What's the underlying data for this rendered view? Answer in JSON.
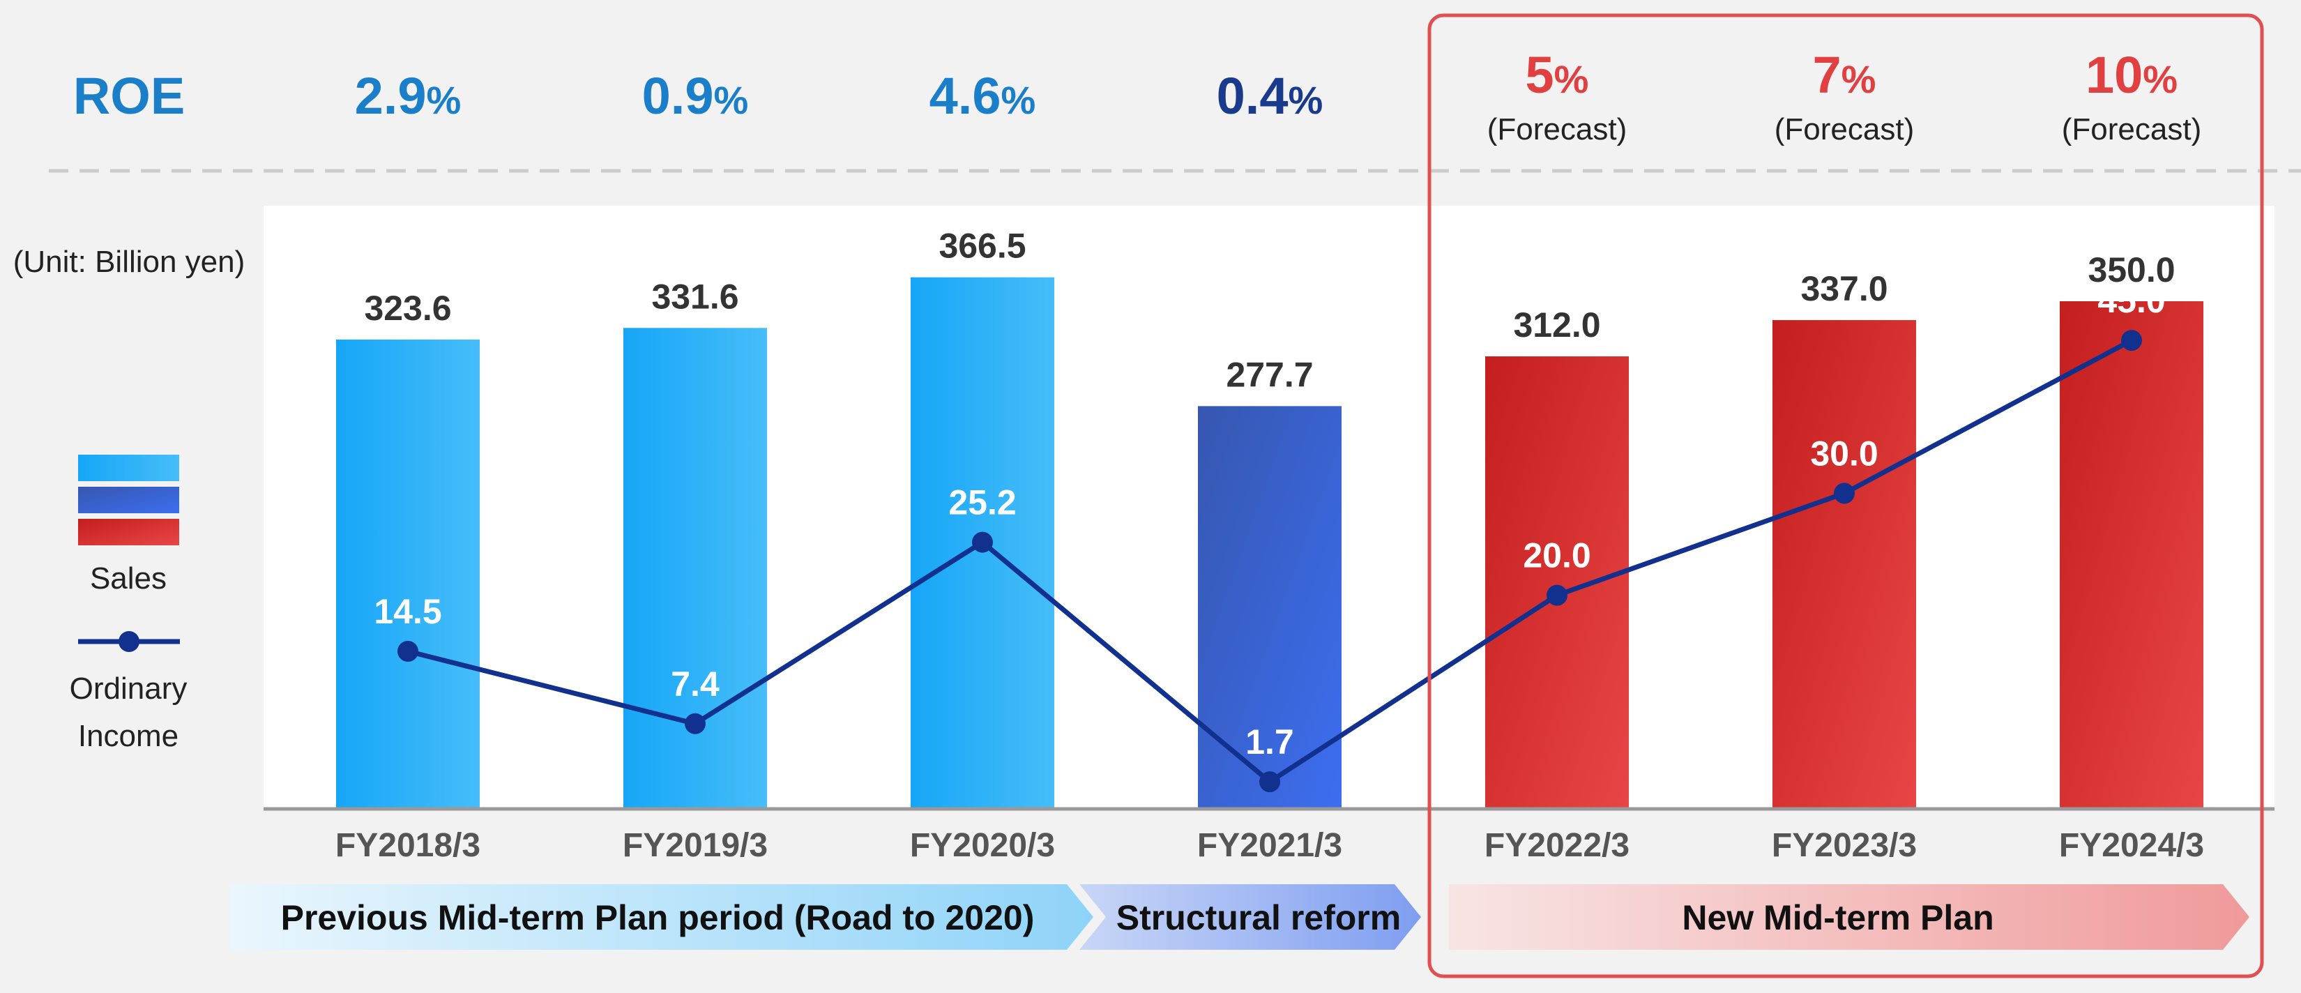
{
  "chart_data": {
    "type": "bar",
    "unit_label": "(Unit: Billion yen)",
    "categories": [
      "FY2018/3",
      "FY2019/3",
      "FY2020/3",
      "FY2021/3",
      "FY2022/3",
      "FY2023/3",
      "FY2024/3"
    ],
    "roe": {
      "label": "ROE",
      "values": [
        "2.9",
        "0.9",
        "4.6",
        "0.4",
        "5",
        "7",
        "10"
      ],
      "percent_sign": "%",
      "notes": [
        "",
        "",
        "",
        "",
        "(Forecast)",
        "(Forecast)",
        "(Forecast)"
      ]
    },
    "series": [
      {
        "name": "Sales",
        "type": "bar",
        "values": [
          323.6,
          331.6,
          366.5,
          277.7,
          312.0,
          337.0,
          350.0
        ],
        "labels": [
          "323.6",
          "331.6",
          "366.5",
          "277.7",
          "312.0",
          "337.0",
          "350.0"
        ]
      },
      {
        "name": "Ordinary Income",
        "type": "line",
        "values": [
          14.5,
          7.4,
          25.2,
          1.7,
          20.0,
          30.0,
          45.0
        ],
        "labels": [
          "14.5",
          "7.4",
          "25.2",
          "1.7",
          "20.0",
          "30.0",
          "45.0"
        ]
      }
    ],
    "legend": {
      "position": "left",
      "sales_label": "Sales",
      "income_label_line1": "Ordinary",
      "income_label_line2": "Income"
    },
    "periods": [
      {
        "label": "Previous Mid-term Plan period (Road to 2020)",
        "categories": [
          "FY2018/3",
          "FY2019/3",
          "FY2020/3"
        ]
      },
      {
        "label": "Structural reform",
        "categories": [
          "FY2021/3"
        ]
      },
      {
        "label": "New Mid-term Plan",
        "categories": [
          "FY2022/3",
          "FY2023/3",
          "FY2024/3"
        ]
      }
    ],
    "colors": {
      "roe_previous": "#1a7ec8",
      "roe_reform": "#1a3a8c",
      "roe_forecast": "#e04040",
      "bar_previous": [
        "#16a6f7",
        "#47bdf9"
      ],
      "bar_reform": [
        "#3657b0",
        "#3d6ef0"
      ],
      "bar_new": [
        "#c41e1e",
        "#e84646"
      ],
      "line": "#12308e",
      "highlight_box": "#e05050",
      "arrow_previous": [
        "#eaf6fd",
        "#8fd3f8"
      ],
      "arrow_reform": [
        "#c8d6f6",
        "#7f9ef0"
      ],
      "arrow_new": [
        "#f8e4e4",
        "#f09a9a"
      ]
    }
  }
}
